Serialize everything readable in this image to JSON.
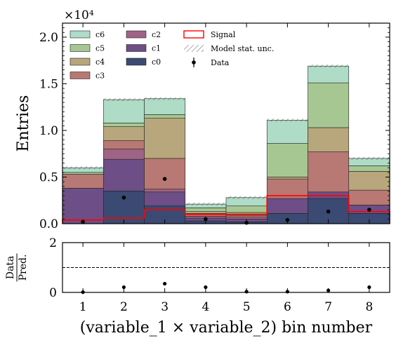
{
  "chart_data": [
    {
      "type": "bar",
      "stacked": true,
      "scale_label": "×10⁴",
      "ylabel": "Entries",
      "ylim": [
        0,
        2.15
      ],
      "yticks": [
        "0.0",
        "0.5",
        "1.0",
        "1.5",
        "2.0"
      ],
      "categories": [
        "1",
        "2",
        "3",
        "4",
        "5",
        "6",
        "7",
        "8"
      ],
      "series": [
        {
          "name": "c0",
          "color": "#3b4a72",
          "values": [
            0.0,
            0.35,
            0.19,
            0.03,
            0.02,
            0.11,
            0.27,
            0.11
          ]
        },
        {
          "name": "c1",
          "color": "#6e4e86",
          "values": [
            0.38,
            0.34,
            0.15,
            0.03,
            0.03,
            0.16,
            0.07,
            0.09
          ]
        },
        {
          "name": "c2",
          "color": "#9f6385",
          "values": [
            0.0,
            0.11,
            0.03,
            0.02,
            0.02,
            0.0,
            0.0,
            0.0
          ]
        },
        {
          "name": "c3",
          "color": "#b87874",
          "values": [
            0.15,
            0.09,
            0.33,
            0.03,
            0.02,
            0.21,
            0.43,
            0.16
          ]
        },
        {
          "name": "c4",
          "color": "#b8a77c",
          "values": [
            0.0,
            0.15,
            0.43,
            0.02,
            0.03,
            0.02,
            0.26,
            0.2
          ]
        },
        {
          "name": "c5",
          "color": "#a6c792",
          "values": [
            0.02,
            0.04,
            0.04,
            0.04,
            0.07,
            0.36,
            0.48,
            0.06
          ]
        },
        {
          "name": "c6",
          "color": "#aedcc6",
          "values": [
            0.05,
            0.25,
            0.17,
            0.04,
            0.09,
            0.25,
            0.18,
            0.08
          ]
        }
      ],
      "signal": {
        "name": "Signal",
        "color": "#ff0000",
        "values": [
          0.04,
          0.06,
          0.15,
          0.1,
          0.1,
          0.3,
          0.3,
          0.13
        ]
      },
      "stat_unc": {
        "name": "Model stat. unc."
      },
      "data_points": {
        "name": "Data",
        "values": [
          0.02,
          0.28,
          0.48,
          0.05,
          0.01,
          0.04,
          0.13,
          0.15
        ]
      }
    },
    {
      "type": "scatter",
      "ylabel_num": "Data",
      "ylabel_den": "Pred.",
      "ylim": [
        0,
        2
      ],
      "yticks": [
        "0",
        "2"
      ],
      "reference_line": 1,
      "values": [
        0.01,
        0.21,
        0.35,
        0.21,
        0.03,
        0.03,
        0.08,
        0.21
      ],
      "xlabel": "(variable_1 × variable_2) bin number"
    }
  ]
}
